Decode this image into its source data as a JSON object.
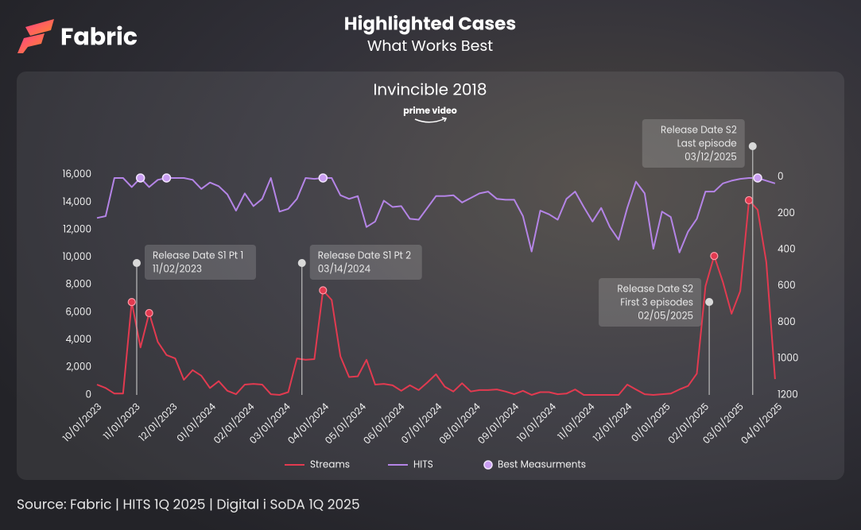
{
  "header": {
    "brand": "Fabric",
    "title": "Highlighted Cases",
    "subtitle": "What Works Best"
  },
  "footer": {
    "source": "Source: Fabric | HITS 1Q 2025 | Digital i SoDA 1Q 2025"
  },
  "chart_data": {
    "type": "line",
    "title": "Invincible 2018",
    "network": "prime video",
    "x": [
      "10/01/2023",
      "10/08/2023",
      "10/15/2023",
      "10/22/2023",
      "10/29/2023",
      "11/05/2023",
      "11/12/2023",
      "11/19/2023",
      "11/26/2023",
      "12/03/2023",
      "12/10/2023",
      "12/17/2023",
      "12/24/2023",
      "12/31/2023",
      "01/07/2024",
      "01/14/2024",
      "01/21/2024",
      "01/28/2024",
      "02/04/2024",
      "02/11/2024",
      "02/18/2024",
      "02/25/2024",
      "03/03/2024",
      "03/10/2024",
      "03/17/2024",
      "03/24/2024",
      "03/31/2024",
      "04/07/2024",
      "04/14/2024",
      "04/21/2024",
      "04/28/2024",
      "05/05/2024",
      "05/12/2024",
      "05/19/2024",
      "05/26/2024",
      "06/02/2024",
      "06/09/2024",
      "06/16/2024",
      "06/23/2024",
      "06/30/2024",
      "07/07/2024",
      "07/14/2024",
      "07/21/2024",
      "07/28/2024",
      "08/04/2024",
      "08/11/2024",
      "08/18/2024",
      "08/25/2024",
      "09/01/2024",
      "09/08/2024",
      "09/15/2024",
      "09/22/2024",
      "09/29/2024",
      "10/06/2024",
      "10/13/2024",
      "10/20/2024",
      "10/27/2024",
      "11/03/2024",
      "11/10/2024",
      "11/17/2024",
      "11/24/2024",
      "12/01/2024",
      "12/08/2024",
      "12/15/2024",
      "12/22/2024",
      "12/29/2024",
      "01/05/2025",
      "01/12/2025",
      "01/19/2025",
      "01/26/2025",
      "02/02/2025",
      "02/09/2025",
      "02/16/2025",
      "02/23/2025",
      "03/02/2025",
      "03/09/2025",
      "03/16/2025",
      "03/23/2025",
      "03/30/2025"
    ],
    "series": [
      {
        "name": "Streams",
        "color": "#e23a50",
        "highlighted": [
          4,
          6,
          26,
          71,
          75
        ],
        "values": [
          750,
          500,
          100,
          100,
          6750,
          3450,
          5950,
          3850,
          2900,
          2650,
          1100,
          1800,
          1400,
          500,
          1000,
          300,
          50,
          750,
          800,
          750,
          50,
          0,
          200,
          2650,
          2550,
          2600,
          7600,
          6900,
          2800,
          1300,
          1350,
          2550,
          750,
          800,
          700,
          300,
          700,
          350,
          900,
          1500,
          600,
          250,
          850,
          250,
          350,
          350,
          400,
          250,
          50,
          300,
          0,
          200,
          200,
          50,
          100,
          400,
          0,
          0,
          0,
          0,
          0,
          750,
          400,
          50,
          0,
          50,
          100,
          400,
          650,
          1550,
          7900,
          10100,
          8200,
          5900,
          7550,
          14150,
          13450,
          9650,
          1150
        ]
      },
      {
        "name": "HITS",
        "color": "#b484e6",
        "axis": "y2",
        "values": [
          225,
          215,
          5,
          5,
          55,
          5,
          55,
          15,
          5,
          5,
          5,
          15,
          65,
          30,
          50,
          95,
          185,
          90,
          160,
          120,
          5,
          190,
          175,
          120,
          5,
          10,
          5,
          5,
          100,
          120,
          105,
          275,
          245,
          130,
          165,
          160,
          230,
          235,
          170,
          105,
          105,
          100,
          140,
          115,
          90,
          80,
          120,
          125,
          125,
          215,
          410,
          185,
          205,
          235,
          120,
          80,
          165,
          245,
          170,
          275,
          345,
          170,
          25,
          90,
          395,
          190,
          220,
          415,
          300,
          230,
          80,
          80,
          35,
          20,
          10,
          5,
          5,
          20,
          35
        ]
      },
      {
        "name": "Best Measurments",
        "color": "#c99df2",
        "axis": "y2",
        "type": "marker",
        "values": [
          null,
          null,
          null,
          null,
          null,
          5,
          null,
          null,
          5,
          null,
          null,
          null,
          null,
          null,
          null,
          null,
          null,
          null,
          null,
          null,
          null,
          null,
          null,
          null,
          null,
          null,
          5,
          null,
          null,
          null,
          null,
          null,
          null,
          null,
          null,
          null,
          null,
          null,
          null,
          null,
          null,
          null,
          null,
          null,
          null,
          null,
          null,
          null,
          null,
          null,
          null,
          null,
          null,
          null,
          null,
          null,
          null,
          null,
          null,
          null,
          null,
          null,
          null,
          null,
          null,
          null,
          null,
          null,
          null,
          null,
          null,
          null,
          null,
          null,
          null,
          null,
          5,
          null,
          null
        ]
      }
    ],
    "xlim": [
      "10/01/2023",
      "04/01/2025"
    ],
    "xticks": [
      "10/01/2023",
      "11/01/2023",
      "12/01/2023",
      "01/01/2024",
      "02/01/2024",
      "03/01/2024",
      "04/01/2024",
      "05/01/2024",
      "06/01/2024",
      "07/01/2024",
      "08/01/2024",
      "09/01/2024",
      "10/01/2024",
      "11/01/2024",
      "12/01/2024",
      "01/01/2025",
      "02/01/2025",
      "03/01/2025",
      "04/01/2025"
    ],
    "ylim": [
      0,
      17150
    ],
    "yticks": [
      0,
      {
        "value": 2000,
        "label": "2,000"
      },
      {
        "value": 4000,
        "label": "4,000"
      },
      {
        "value": 6000,
        "label": "6,000"
      },
      {
        "value": 8000,
        "label": "8,000"
      },
      {
        "value": 10000,
        "label": "10,000"
      },
      {
        "value": 12000,
        "label": "12,000"
      },
      {
        "value": 14000,
        "label": "14,000"
      },
      {
        "value": 16000,
        "label": "16,000"
      }
    ],
    "y2lim": [
      1200,
      -100
    ],
    "y2ticks": [
      0,
      200,
      400,
      600,
      800,
      1000,
      1200
    ],
    "grid": false,
    "legend": "bottom",
    "annotations": [
      {
        "lines": [
          "Release Date S1 Pt 1"
        ],
        "date": "11/02/2023"
      },
      {
        "lines": [
          "Release Date S1 Pt 2"
        ],
        "date": "03/14/2024"
      },
      {
        "lines": [
          "Release Date S2",
          "First 3 episodes"
        ],
        "date": "02/05/2025"
      },
      {
        "lines": [
          "Release Date S2",
          "Last episode"
        ],
        "date": "03/12/2025"
      }
    ]
  }
}
